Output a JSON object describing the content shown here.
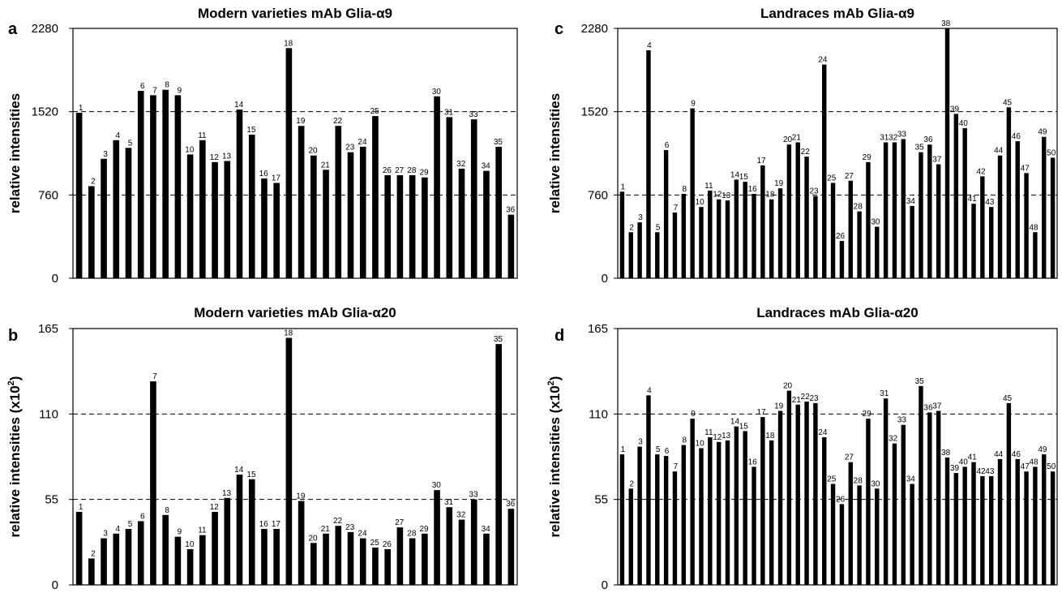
{
  "chart_data": [
    {
      "panel": "a",
      "type": "bar",
      "title": "Modern varieties mAb Glia-α9",
      "ylabel": "relative intensities",
      "ylabel_exponent": "",
      "ylim": [
        0,
        2280
      ],
      "yticks": [
        0,
        760,
        1520,
        2280
      ],
      "dashed_lines": [
        760,
        1520
      ],
      "categories": [
        "1",
        "2",
        "3",
        "4",
        "5",
        "6",
        "7",
        "8",
        "9",
        "10",
        "11",
        "12",
        "13",
        "14",
        "15",
        "16",
        "17",
        "18",
        "19",
        "20",
        "21",
        "22",
        "23",
        "24",
        "25",
        "26",
        "27",
        "28",
        "29",
        "30",
        "31",
        "32",
        "33",
        "34",
        "35",
        "36"
      ],
      "values": [
        1510,
        840,
        1090,
        1260,
        1190,
        1710,
        1670,
        1720,
        1670,
        1130,
        1260,
        1060,
        1070,
        1540,
        1310,
        910,
        870,
        2100,
        1390,
        1120,
        990,
        1390,
        1150,
        1200,
        1480,
        940,
        940,
        940,
        920,
        1660,
        1470,
        1000,
        1450,
        980,
        1200,
        580
      ]
    },
    {
      "panel": "b",
      "type": "bar",
      "title": "Modern varieties mAb Glia-α20",
      "ylabel": "relative intensities (x10",
      "ylabel_exponent": "2",
      "ylim": [
        0,
        165
      ],
      "yticks": [
        0,
        55,
        110,
        165
      ],
      "dashed_lines": [
        55,
        110
      ],
      "categories": [
        "1",
        "2",
        "3",
        "4",
        "5",
        "6",
        "7",
        "8",
        "9",
        "10",
        "11",
        "12",
        "13",
        "14",
        "15",
        "16",
        "17",
        "18",
        "19",
        "20",
        "21",
        "22",
        "23",
        "24",
        "25",
        "26",
        "27",
        "28",
        "29",
        "30",
        "31",
        "32",
        "33",
        "34",
        "35",
        "36"
      ],
      "values": [
        47,
        17,
        30,
        33,
        36,
        41,
        131,
        45,
        31,
        23,
        32,
        47,
        56,
        71,
        68,
        36,
        36,
        159,
        54,
        27,
        33,
        38,
        34,
        30,
        24,
        23,
        37,
        30,
        33,
        61,
        50,
        42,
        55,
        33,
        155,
        49
      ]
    },
    {
      "panel": "c",
      "type": "bar",
      "title": "Landraces mAb Glia-α9",
      "ylabel": "relative intensities",
      "ylabel_exponent": "",
      "ylim": [
        0,
        2280
      ],
      "yticks": [
        0,
        760,
        1520,
        2280
      ],
      "dashed_lines": [
        760,
        1520
      ],
      "categories": [
        "1",
        "2",
        "3",
        "4",
        "5",
        "6",
        "7",
        "8",
        "9",
        "10",
        "11",
        "12",
        "13",
        "14",
        "15",
        "16",
        "17",
        "18",
        "19",
        "20",
        "21",
        "22",
        "23",
        "24",
        "25",
        "26",
        "27",
        "28",
        "29",
        "30",
        "31",
        "32",
        "33",
        "34",
        "35",
        "36",
        "37",
        "38",
        "39",
        "40",
        "41",
        "42",
        "43",
        "44",
        "45",
        "46",
        "47",
        "48",
        "49",
        "50"
      ],
      "values": [
        790,
        420,
        510,
        2080,
        420,
        1170,
        600,
        770,
        1550,
        650,
        800,
        720,
        710,
        900,
        880,
        770,
        1030,
        720,
        820,
        1220,
        1240,
        1110,
        750,
        1950,
        870,
        340,
        890,
        610,
        1060,
        470,
        1240,
        1240,
        1270,
        660,
        1150,
        1220,
        1040,
        2280,
        1500,
        1370,
        680,
        930,
        650,
        1120,
        1560,
        1250,
        960,
        420,
        1290,
        1100
      ]
    },
    {
      "panel": "d",
      "type": "bar",
      "title": "Landraces mAb Glia-α20",
      "ylabel": "relative intensities (x10",
      "ylabel_exponent": "2",
      "ylim": [
        0,
        165
      ],
      "yticks": [
        0,
        55,
        110,
        165
      ],
      "dashed_lines": [
        55,
        110
      ],
      "categories": [
        "1",
        "2",
        "3",
        "4",
        "5",
        "6",
        "7",
        "8",
        "9",
        "10",
        "11",
        "12",
        "13",
        "14",
        "15",
        "16",
        "17",
        "18",
        "19",
        "20",
        "21",
        "22",
        "23",
        "24",
        "25",
        "26",
        "27",
        "28",
        "29",
        "30",
        "31",
        "32",
        "33",
        "34",
        "35",
        "36",
        "37",
        "38",
        "39",
        "40",
        "41",
        "42",
        "43",
        "44",
        "45",
        "46",
        "47",
        "48",
        "49",
        "50"
      ],
      "values": [
        84,
        62,
        89,
        122,
        84,
        83,
        73,
        90,
        107,
        88,
        95,
        92,
        93,
        102,
        99,
        76,
        108,
        93,
        112,
        125,
        116,
        118,
        117,
        95,
        65,
        52,
        79,
        64,
        107,
        62,
        120,
        91,
        103,
        65,
        128,
        111,
        112,
        82,
        72,
        76,
        79,
        70,
        70,
        81,
        117,
        81,
        73,
        76,
        84,
        73
      ]
    }
  ]
}
